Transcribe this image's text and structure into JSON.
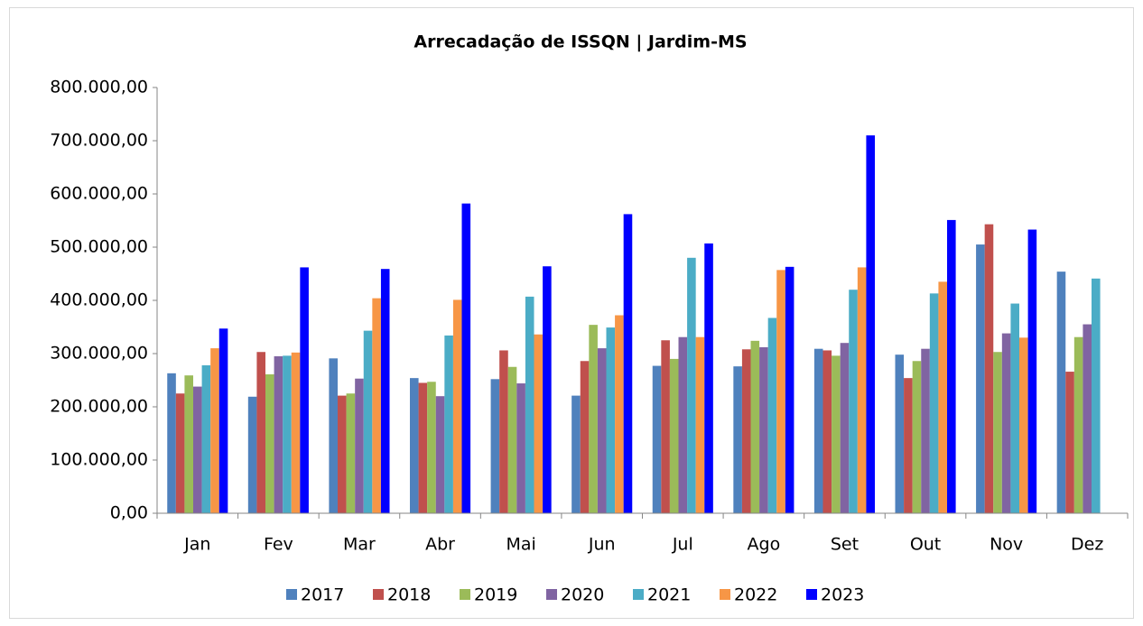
{
  "chart_data": {
    "type": "bar",
    "title": "Arrecadação de ISSQN | Jardim-MS",
    "categories": [
      "Jan",
      "Fev",
      "Mar",
      "Abr",
      "Mai",
      "Jun",
      "Jul",
      "Ago",
      "Set",
      "Out",
      "Nov",
      "Dez"
    ],
    "series": [
      {
        "name": "2017",
        "color": "#4f81bd",
        "values": [
          263000,
          219000,
          291000,
          254000,
          252000,
          221000,
          277000,
          276000,
          309000,
          298000,
          505000,
          454000
        ]
      },
      {
        "name": "2018",
        "color": "#c0504d",
        "values": [
          225000,
          303000,
          221000,
          245000,
          306000,
          286000,
          325000,
          308000,
          306000,
          254000,
          543000,
          266000
        ]
      },
      {
        "name": "2019",
        "color": "#9bbb59",
        "values": [
          259000,
          261000,
          225000,
          247000,
          275000,
          354000,
          290000,
          324000,
          296000,
          286000,
          303000,
          331000
        ]
      },
      {
        "name": "2020",
        "color": "#8064a2",
        "values": [
          238000,
          295000,
          253000,
          220000,
          244000,
          310000,
          331000,
          312000,
          320000,
          309000,
          338000,
          355000
        ]
      },
      {
        "name": "2021",
        "color": "#4bacc6",
        "values": [
          278000,
          296000,
          343000,
          334000,
          407000,
          349000,
          480000,
          367000,
          420000,
          413000,
          394000,
          441000
        ]
      },
      {
        "name": "2022",
        "color": "#f79646",
        "values": [
          310000,
          302000,
          404000,
          401000,
          336000,
          372000,
          331000,
          457000,
          462000,
          435000,
          330000,
          null
        ]
      },
      {
        "name": "2023",
        "color": "#0000ff",
        "values": [
          347000,
          462000,
          459000,
          582000,
          464000,
          562000,
          507000,
          463000,
          710000,
          551000,
          533000,
          null
        ]
      }
    ],
    "ylim": [
      0,
      800000
    ],
    "yticks": [
      {
        "value": 0,
        "label": "0,00"
      },
      {
        "value": 100000,
        "label": "100.000,00"
      },
      {
        "value": 200000,
        "label": "200.000,00"
      },
      {
        "value": 300000,
        "label": "300.000,00"
      },
      {
        "value": 400000,
        "label": "400.000,00"
      },
      {
        "value": 500000,
        "label": "500.000,00"
      },
      {
        "value": 600000,
        "label": "600.000,00"
      },
      {
        "value": 700000,
        "label": "700.000,00"
      },
      {
        "value": 800000,
        "label": "800.000,00"
      }
    ],
    "grid": false,
    "legend": "bottom"
  }
}
